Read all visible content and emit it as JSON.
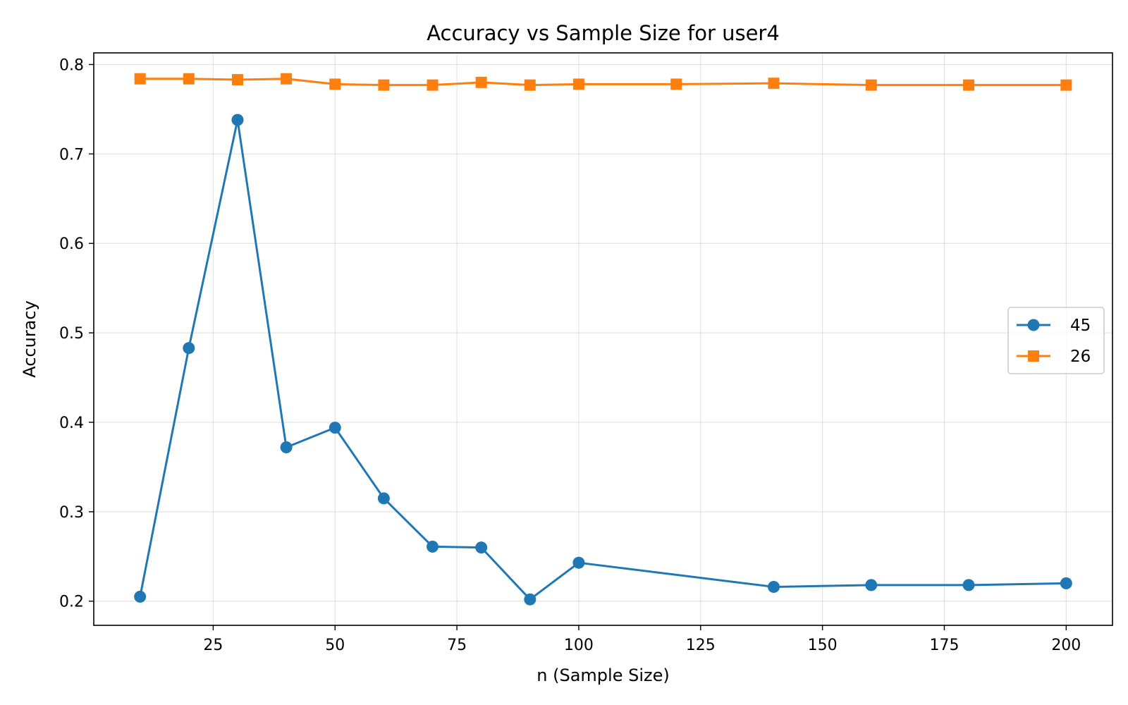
{
  "chart_data": {
    "type": "line",
    "title": "Accuracy vs Sample Size for user4",
    "xlabel": "n (Sample Size)",
    "ylabel": "Accuracy",
    "xlim": [
      0.5,
      209.5
    ],
    "ylim": [
      0.173,
      0.813
    ],
    "xticks": [
      25,
      50,
      75,
      100,
      125,
      150,
      175,
      200
    ],
    "yticks": [
      0.2,
      0.3,
      0.4,
      0.5,
      0.6,
      0.7,
      0.8
    ],
    "grid": true,
    "legend_position": "center-right",
    "series": [
      {
        "name": "45",
        "color": "#1f77b4",
        "marker": "circle",
        "x": [
          10,
          20,
          30,
          40,
          50,
          60,
          70,
          80,
          90,
          100,
          140,
          160,
          180,
          200
        ],
        "y": [
          0.205,
          0.483,
          0.738,
          0.372,
          0.394,
          0.315,
          0.261,
          0.26,
          0.202,
          0.243,
          0.216,
          0.218,
          0.218,
          0.22
        ]
      },
      {
        "name": "26",
        "color": "#ff7f0e",
        "marker": "square",
        "x": [
          10,
          20,
          30,
          40,
          50,
          60,
          70,
          80,
          90,
          100,
          120,
          140,
          160,
          180,
          200
        ],
        "y": [
          0.784,
          0.784,
          0.783,
          0.784,
          0.778,
          0.777,
          0.777,
          0.78,
          0.777,
          0.778,
          0.778,
          0.779,
          0.777,
          0.777,
          0.777
        ]
      }
    ]
  }
}
